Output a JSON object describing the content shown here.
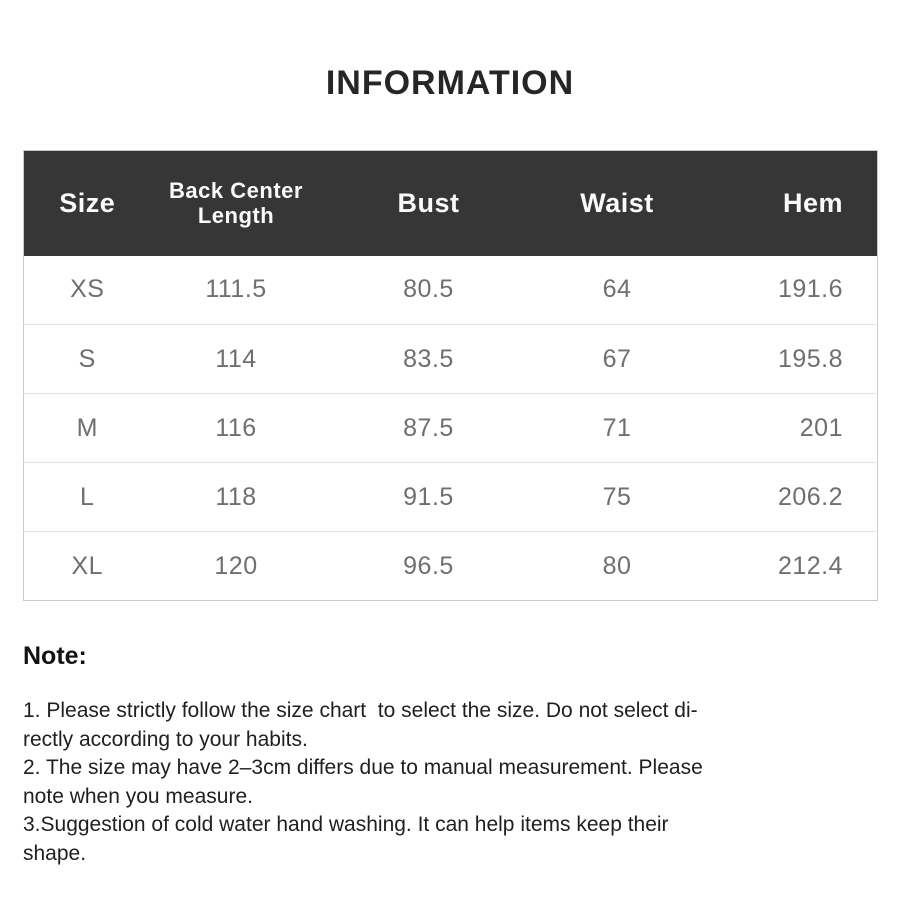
{
  "page": {
    "title": "INFORMATION"
  },
  "size_table": {
    "header": {
      "size": "Size",
      "back_center_line1": "Back Center",
      "back_center_line2": "Length",
      "bust": "Bust",
      "waist": "Waist",
      "hem": "Hem"
    },
    "rows": [
      {
        "size": "XS",
        "back_center_length": "111.5",
        "bust": "80.5",
        "waist": "64",
        "hem": "191.6"
      },
      {
        "size": "S",
        "back_center_length": "114",
        "bust": "83.5",
        "waist": "67",
        "hem": "195.8"
      },
      {
        "size": "M",
        "back_center_length": "116",
        "bust": "87.5",
        "waist": "71",
        "hem": "201"
      },
      {
        "size": "L",
        "back_center_length": "118",
        "bust": "91.5",
        "waist": "75",
        "hem": "206.2"
      },
      {
        "size": "XL",
        "back_center_length": "120",
        "bust": "96.5",
        "waist": "80",
        "hem": "212.4"
      }
    ]
  },
  "notes": {
    "heading": "Note:",
    "items": [
      "1. Please strictly follow the size chart  to select the size. Do not select di-\nrectly according to your habits.",
      "2. The size may have 2–3cm differs due to manual measurement. Please\nnote when you measure.",
      "3.Suggestion of cold water hand washing. It can help items keep their\nshape."
    ]
  },
  "colors": {
    "header_bg": "#363636",
    "header_text": "#fafafa",
    "body_text": "#6f6f6f",
    "row_divider": "#e3e3e3",
    "table_border": "#c9c9c9",
    "title_text": "#262626",
    "note_text": "#1f1f1f"
  },
  "chart_data": {
    "type": "table",
    "title": "INFORMATION",
    "columns": [
      "Size",
      "Back Center Length",
      "Bust",
      "Waist",
      "Hem"
    ],
    "rows": [
      [
        "XS",
        111.5,
        80.5,
        64,
        191.6
      ],
      [
        "S",
        114,
        83.5,
        67,
        195.8
      ],
      [
        "M",
        116,
        87.5,
        71,
        201
      ],
      [
        "L",
        118,
        91.5,
        75,
        206.2
      ],
      [
        "XL",
        120,
        96.5,
        80,
        212.4
      ]
    ],
    "notes_heading": "Note:",
    "notes": [
      "1. Please strictly follow the size chart  to select the size. Do not select directly according to your habits.",
      "2. The size may have 2–3cm differs due to manual measurement. Please note when you measure.",
      "3.Suggestion of cold water hand washing. It can help items keep their shape."
    ]
  }
}
